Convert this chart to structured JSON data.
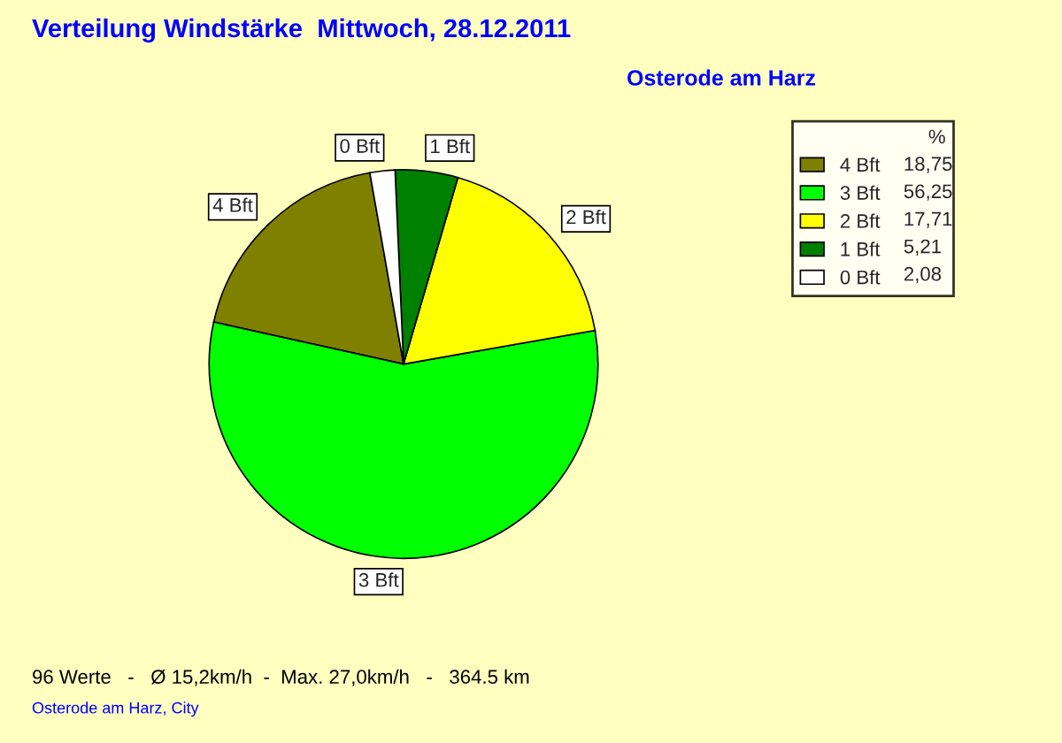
{
  "chart_data": {
    "type": "pie",
    "title": "Verteilung Windstärke  Mittwoch, 28.12.2011",
    "subtitle": "Osterode am Harz",
    "legend_title": "%",
    "legend": "top right",
    "categories": [
      "4 Bft",
      "3 Bft",
      "2 Bft",
      "1 Bft",
      "0 Bft"
    ],
    "values": [
      18.75,
      56.25,
      17.71,
      5.21,
      2.08
    ],
    "value_labels": [
      "18,75",
      "56,25",
      "17,71",
      "5,21",
      "2,08"
    ],
    "colors": [
      "#808000",
      "#00ff00",
      "#ffff00",
      "#008000",
      "#ffffff"
    ],
    "annotations": [
      "96 Werte   -   Ø 15,2km/h  -  Max. 27,0km/h   -   364.5 km",
      "Osterode am Harz, City"
    ]
  }
}
